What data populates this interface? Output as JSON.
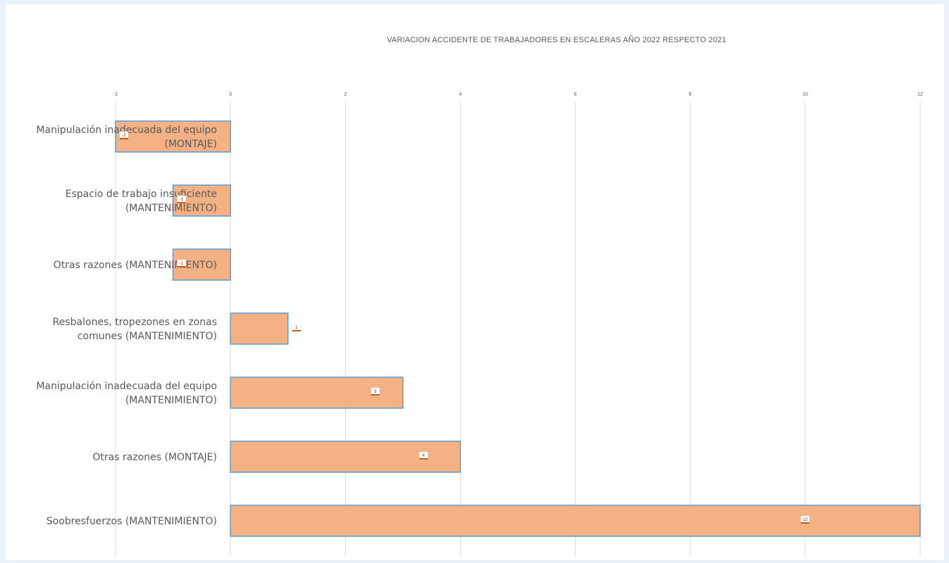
{
  "chart_data": {
    "type": "bar",
    "orientation": "horizontal",
    "title": "VARIACION ACCIDENTE DE TRABAJADORES EN ESCALERAS AÑO 2022 RESPECTO 2021",
    "xlim": [
      -2,
      12
    ],
    "ticks": [
      -2,
      0,
      2,
      4,
      6,
      8,
      10,
      12
    ],
    "grid": true,
    "legend": "none",
    "categories": [
      [
        "Manipulación inadecuada del equipo",
        "(MONTAJE)"
      ],
      [
        "Espacio de trabajo insuficiente",
        "(MANTENIMIENTO)"
      ],
      [
        "Otras razones (MANTENIMIENTO)"
      ],
      [
        "Resbalones, tropezones en zonas",
        "comunes (MANTENIMIENTO)"
      ],
      [
        "Manipulación inadecuada del equipo",
        "(MANTENIMIENTO)"
      ],
      [
        "Otras razones (MONTAJE)"
      ],
      [
        "Soobresfuerzos (MANTENIMIENTO)"
      ]
    ],
    "values": [
      -2,
      -1,
      -1,
      1,
      3,
      4,
      12
    ],
    "data_labels": [
      "-2",
      "-1",
      "-1",
      "1",
      "3",
      "4",
      "12"
    ],
    "colors": {
      "bar_fill": "#f4b183",
      "bar_border": "#5b9bd5",
      "grid": "#d9d9d9",
      "text": "#595959",
      "label_accent": "#c55a11"
    }
  }
}
